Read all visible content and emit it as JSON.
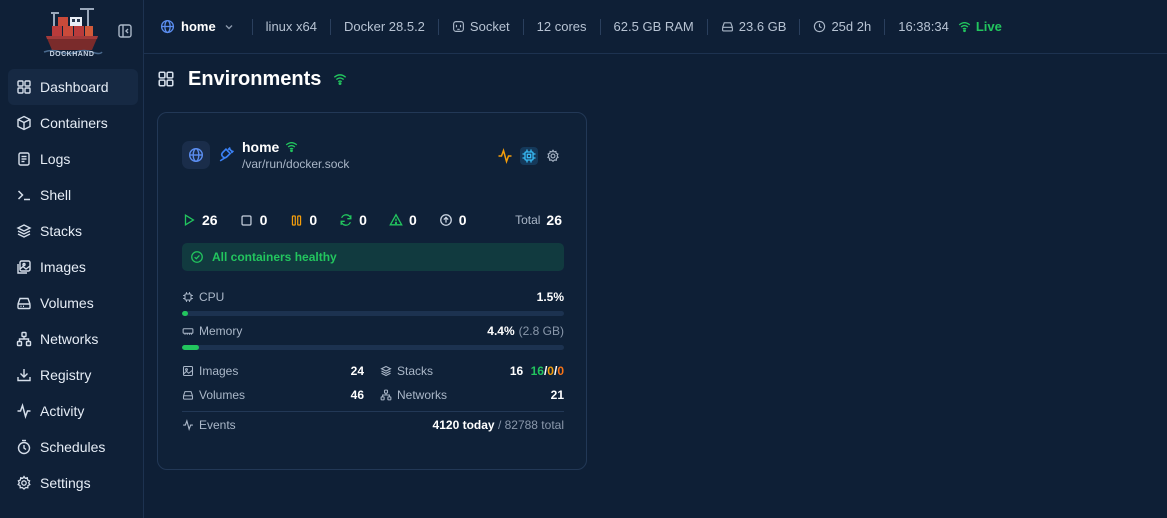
{
  "app": {
    "logo_text": "DOCKHAND"
  },
  "sidebar": {
    "items": [
      {
        "label": "Dashboard",
        "icon": "dashboard-icon"
      },
      {
        "label": "Containers",
        "icon": "box-icon"
      },
      {
        "label": "Logs",
        "icon": "logs-icon"
      },
      {
        "label": "Shell",
        "icon": "terminal-icon"
      },
      {
        "label": "Stacks",
        "icon": "layers-icon"
      },
      {
        "label": "Images",
        "icon": "images-icon"
      },
      {
        "label": "Volumes",
        "icon": "hard-drive-icon"
      },
      {
        "label": "Networks",
        "icon": "network-icon"
      },
      {
        "label": "Registry",
        "icon": "download-icon"
      },
      {
        "label": "Activity",
        "icon": "activity-icon"
      },
      {
        "label": "Schedules",
        "icon": "timer-icon"
      },
      {
        "label": "Settings",
        "icon": "gear-icon"
      }
    ],
    "active": "Dashboard"
  },
  "header": {
    "environment": "home",
    "os": "linux x64",
    "docker_version": "Docker 28.5.2",
    "connection": "Socket",
    "cores": "12 cores",
    "ram": "62.5 GB RAM",
    "disk": "23.6 GB",
    "uptime": "25d 2h",
    "time": "16:38:34",
    "status": "Live"
  },
  "page": {
    "title": "Environments"
  },
  "environment_card": {
    "name": "home",
    "path": "/var/run/docker.sock",
    "counts": {
      "running": "26",
      "stopped": "0",
      "paused": "0",
      "restarting": "0",
      "unhealthy": "0",
      "created": "0",
      "total_label": "Total",
      "total": "26"
    },
    "health_message": "All containers healthy",
    "cpu": {
      "label": "CPU",
      "value": "1.5%",
      "percent": 1.5
    },
    "memory": {
      "label": "Memory",
      "value": "4.4%",
      "detail": "(2.8 GB)",
      "percent": 4.4
    },
    "images": {
      "label": "Images",
      "value": "24"
    },
    "stacks": {
      "label": "Stacks",
      "total": "16",
      "running": "16",
      "paused": "0",
      "stopped": "0"
    },
    "volumes": {
      "label": "Volumes",
      "value": "46"
    },
    "networks": {
      "label": "Networks",
      "value": "21"
    },
    "events": {
      "label": "Events",
      "today": "4120 today",
      "total": "/ 82788 total"
    }
  },
  "colors": {
    "background": "#0e1f36",
    "accent_green": "#22c55e",
    "accent_blue": "#5b8def",
    "accent_amber": "#f59e0b"
  }
}
